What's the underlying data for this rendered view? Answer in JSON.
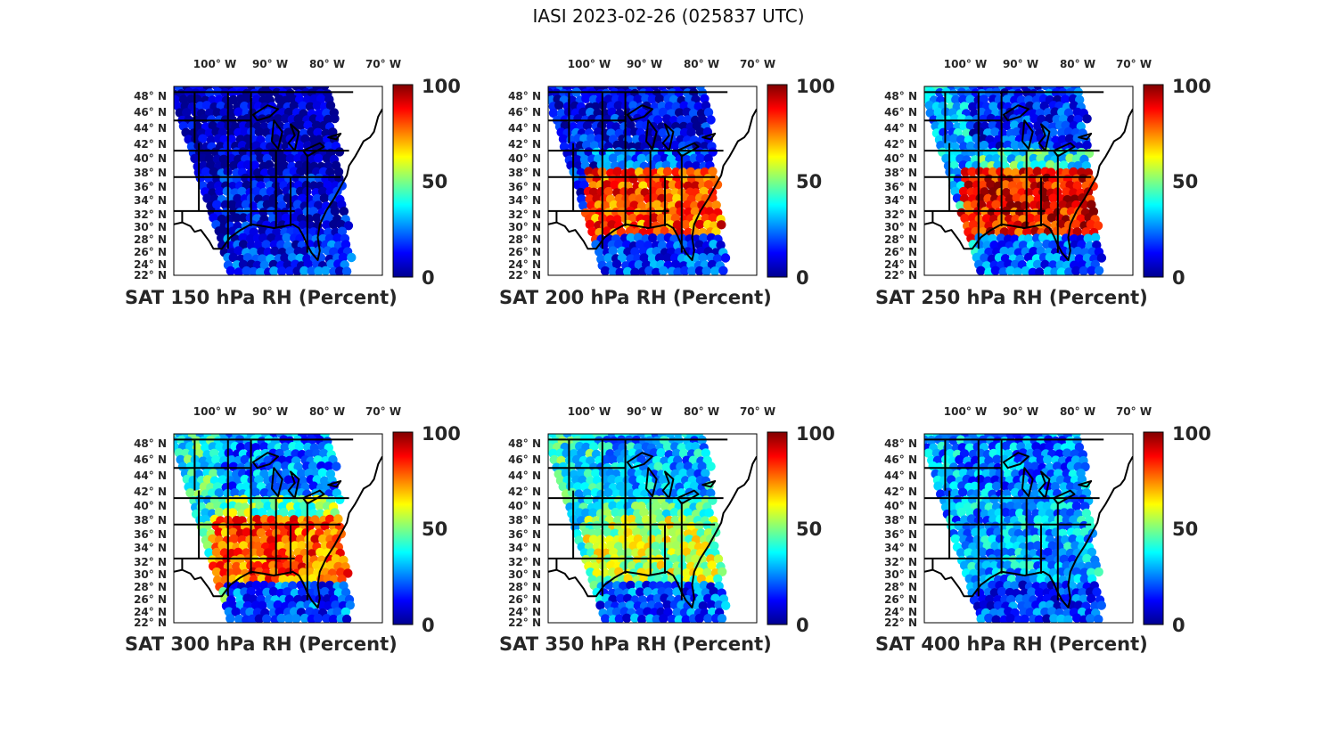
{
  "title": "IASI 2023-02-26 (025837 UTC)",
  "colormap": [
    "#00008f",
    "#0000ff",
    "#00ffff",
    "#ffff00",
    "#ff0000",
    "#800000"
  ],
  "chart_data": [
    {
      "type": "heatmap",
      "panel_title": "SAT 150 hPa RH (Percent)",
      "level_hPa": 150,
      "variable": "RH",
      "units": "Percent",
      "lon_ticks": [
        "100° W",
        "90° W",
        "80° W",
        "70° W"
      ],
      "lat_ticks": [
        "48° N",
        "46° N",
        "44° N",
        "42° N",
        "40° N",
        "38° N",
        "36° N",
        "34° N",
        "32° N",
        "30° N",
        "28° N",
        "26° N",
        "24° N",
        "22° N"
      ],
      "colorbar_ticks": [
        "100",
        "50",
        "0"
      ],
      "clim": [
        0,
        100
      ],
      "regions": {
        "north": 3,
        "plains": 5,
        "southeast": 10,
        "gulf": 15,
        "west": 4
      }
    },
    {
      "type": "heatmap",
      "panel_title": "SAT 200 hPa RH (Percent)",
      "level_hPa": 200,
      "variable": "RH",
      "units": "Percent",
      "lon_ticks": [
        "100° W",
        "90° W",
        "80° W",
        "70° W"
      ],
      "lat_ticks": [
        "48° N",
        "46° N",
        "44° N",
        "42° N",
        "40° N",
        "38° N",
        "36° N",
        "34° N",
        "32° N",
        "30° N",
        "28° N",
        "26° N",
        "24° N",
        "22° N"
      ],
      "colorbar_ticks": [
        "100",
        "50",
        "0"
      ],
      "clim": [
        0,
        100
      ],
      "regions": {
        "north": 10,
        "plains": 20,
        "southeast": 80,
        "gulf": 18,
        "west": 12
      }
    },
    {
      "type": "heatmap",
      "panel_title": "SAT 250 hPa RH (Percent)",
      "level_hPa": 250,
      "variable": "RH",
      "units": "Percent",
      "lon_ticks": [
        "100° W",
        "90° W",
        "80° W",
        "70° W"
      ],
      "lat_ticks": [
        "48° N",
        "46° N",
        "44° N",
        "42° N",
        "40° N",
        "38° N",
        "36° N",
        "34° N",
        "32° N",
        "30° N",
        "28° N",
        "26° N",
        "24° N",
        "22° N"
      ],
      "colorbar_ticks": [
        "100",
        "50",
        "0"
      ],
      "clim": [
        0,
        100
      ],
      "regions": {
        "north": 15,
        "plains": 40,
        "southeast": 88,
        "gulf": 22,
        "west": 30
      }
    },
    {
      "type": "heatmap",
      "panel_title": "SAT 300 hPa RH (Percent)",
      "level_hPa": 300,
      "variable": "RH",
      "units": "Percent",
      "lon_ticks": [
        "100° W",
        "90° W",
        "80° W",
        "70° W"
      ],
      "lat_ticks": [
        "48° N",
        "46° N",
        "44° N",
        "42° N",
        "40° N",
        "38° N",
        "36° N",
        "34° N",
        "32° N",
        "30° N",
        "28° N",
        "26° N",
        "24° N",
        "22° N"
      ],
      "colorbar_ticks": [
        "100",
        "50",
        "0"
      ],
      "clim": [
        0,
        100
      ],
      "regions": {
        "north": 25,
        "plains": 50,
        "southeast": 78,
        "gulf": 20,
        "west": 40
      }
    },
    {
      "type": "heatmap",
      "panel_title": "SAT 350 hPa RH (Percent)",
      "level_hPa": 350,
      "variable": "RH",
      "units": "Percent",
      "lon_ticks": [
        "100° W",
        "90° W",
        "80° W",
        "70° W"
      ],
      "lat_ticks": [
        "48° N",
        "46° N",
        "44° N",
        "42° N",
        "40° N",
        "38° N",
        "36° N",
        "34° N",
        "32° N",
        "30° N",
        "28° N",
        "26° N",
        "24° N",
        "22° N"
      ],
      "colorbar_ticks": [
        "100",
        "50",
        "0"
      ],
      "clim": [
        0,
        100
      ],
      "regions": {
        "north": 30,
        "plains": 40,
        "southeast": 55,
        "gulf": 20,
        "west": 40
      }
    },
    {
      "type": "heatmap",
      "panel_title": "SAT 400 hPa RH (Percent)",
      "level_hPa": 400,
      "variable": "RH",
      "units": "Percent",
      "lon_ticks": [
        "100° W",
        "90° W",
        "80° W",
        "70° W"
      ],
      "lat_ticks": [
        "48° N",
        "46° N",
        "44° N",
        "42° N",
        "40° N",
        "38° N",
        "36° N",
        "34° N",
        "32° N",
        "30° N",
        "28° N",
        "26° N",
        "24° N",
        "22° N"
      ],
      "colorbar_ticks": [
        "100",
        "50",
        "0"
      ],
      "clim": [
        0,
        100
      ],
      "regions": {
        "north": 25,
        "plains": 30,
        "southeast": 30,
        "gulf": 18,
        "west": 28
      }
    }
  ]
}
